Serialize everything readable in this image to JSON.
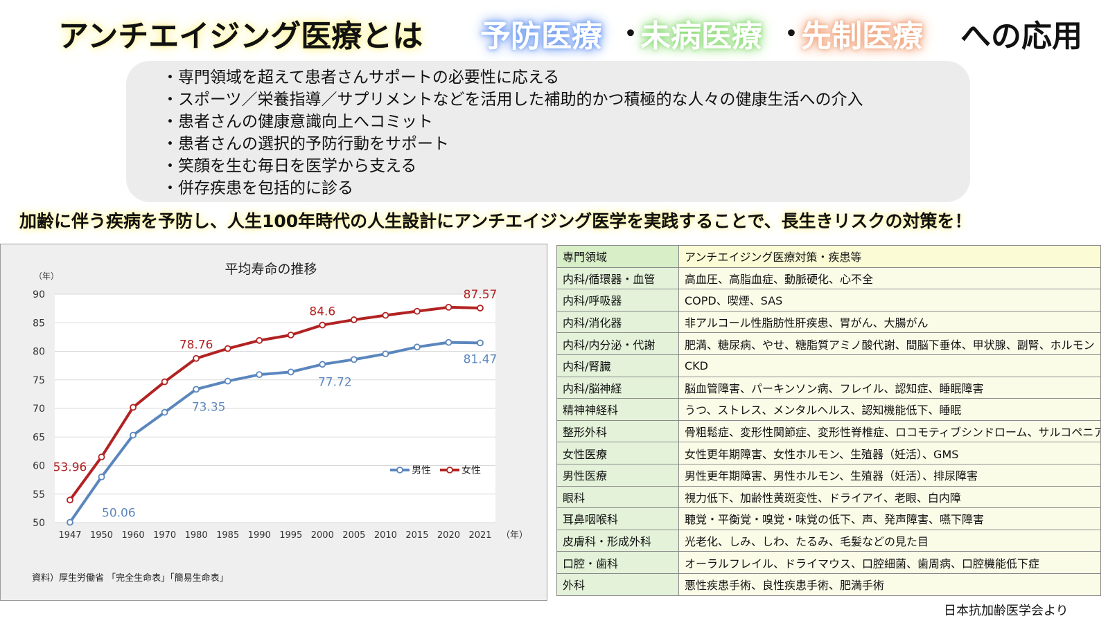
{
  "title": {
    "main": "アンチエイジング医療とは",
    "keyword1": "予防医療",
    "sep": "・",
    "keyword2": "未病医療",
    "keyword3": "先制医療",
    "suffix": "への応用",
    "colors": {
      "keyword1_glow": "#6e9bf0",
      "keyword2_glow": "#8fdc7c",
      "keyword3_glow": "#f0a27a"
    }
  },
  "bullets": [
    "・専門領域を超えて患者さんサポートの必要性に応える",
    "・スポーツ／栄養指導／サプリメントなどを活用した補助的かつ積極的な人々の健康生活への介入",
    "・患者さんの健康意識向上へコミット",
    "・患者さんの選択的予防行動をサポート",
    "・笑顔を生む毎日を医学から支える",
    "・併存疾患を包括的に診る"
  ],
  "banner": "加齢に伴う疾病を予防し、人生100年時代の人生設計にアンチエイジング医学を実践することで、長生きリスクの対策を！",
  "chart_data": {
    "type": "line",
    "title": "平均寿命の推移",
    "ylabel": "（年）",
    "xlabel": "（年）",
    "ylim": [
      50,
      90
    ],
    "yticks": [
      50,
      55,
      60,
      65,
      70,
      75,
      80,
      85,
      90
    ],
    "grid": true,
    "legend": "middle-right",
    "categories": [
      "1947",
      "1950",
      "1960",
      "1970",
      "1980",
      "1985",
      "1990",
      "1995",
      "2000",
      "2005",
      "2010",
      "2015",
      "2020",
      "2021"
    ],
    "series": [
      {
        "name": "男性",
        "color": "#5b86bd",
        "values": [
          50.06,
          58.0,
          65.32,
          69.31,
          73.35,
          74.78,
          75.92,
          76.38,
          77.72,
          78.56,
          79.55,
          80.75,
          81.56,
          81.47
        ],
        "labels": [
          {
            "index": 0,
            "text": "50.06"
          },
          {
            "index": 4,
            "text": "73.35"
          },
          {
            "index": 8,
            "text": "77.72"
          },
          {
            "index": 13,
            "text": "81.47"
          }
        ]
      },
      {
        "name": "女性",
        "color": "#b22222",
        "values": [
          53.96,
          61.5,
          70.19,
          74.66,
          78.76,
          80.48,
          81.9,
          82.85,
          84.6,
          85.52,
          86.3,
          87.01,
          87.71,
          87.57
        ],
        "labels": [
          {
            "index": 0,
            "text": "53.96"
          },
          {
            "index": 4,
            "text": "78.76"
          },
          {
            "index": 8,
            "text": "84.6"
          },
          {
            "index": 13,
            "text": "87.57"
          }
        ]
      }
    ]
  },
  "chart_source": "資料）厚生労働省 「完全生命表」「簡易生命表」",
  "table": {
    "header": [
      "専門領域",
      "アンチエイジング医療対策・疾患等"
    ],
    "rows": [
      [
        "内科/循環器・血管",
        "高血圧、高脂血症、動脈硬化、心不全"
      ],
      [
        "内科/呼吸器",
        "COPD、喫煙、SAS"
      ],
      [
        "内科/消化器",
        "非アルコール性脂肪性肝疾患、胃がん、大腸がん"
      ],
      [
        "内科/内分泌・代謝",
        "肥満、糖尿病、やせ、糖脂質アミノ酸代謝、間脳下垂体、甲状腺、副腎、ホルモン"
      ],
      [
        "内科/腎臓",
        "CKD"
      ],
      [
        "内科/脳神経",
        "脳血管障害、パーキンソン病、フレイル、認知症、睡眠障害"
      ],
      [
        "精神神経科",
        "うつ、ストレス、メンタルヘルス、認知機能低下、睡眠"
      ],
      [
        "整形外科",
        "骨粗鬆症、変形性関節症、変形性脊椎症、ロコモティブシンドローム、サルコペニア"
      ],
      [
        "女性医療",
        "女性更年期障害、女性ホルモン、生殖器（妊活）、GMS"
      ],
      [
        "男性医療",
        "男性更年期障害、男性ホルモン、生殖器（妊活）、排尿障害"
      ],
      [
        "眼科",
        "視力低下、加齢性黄斑変性、ドライアイ、老眼、白内障"
      ],
      [
        "耳鼻咽喉科",
        "聴覚・平衡覚・嗅覚・味覚の低下、声、発声障害、嚥下障害"
      ],
      [
        "皮膚科・形成外科",
        "光老化、しみ、しわ、たるみ、毛髪などの見た目"
      ],
      [
        "口腔・歯科",
        "オーラルフレイル、ドライマウス、口腔細菌、歯周病、口腔機能低下症"
      ],
      [
        "外科",
        "悪性疾患手術、良性疾患手術、肥満手術"
      ]
    ]
  },
  "credit": "日本抗加齢医学会より"
}
